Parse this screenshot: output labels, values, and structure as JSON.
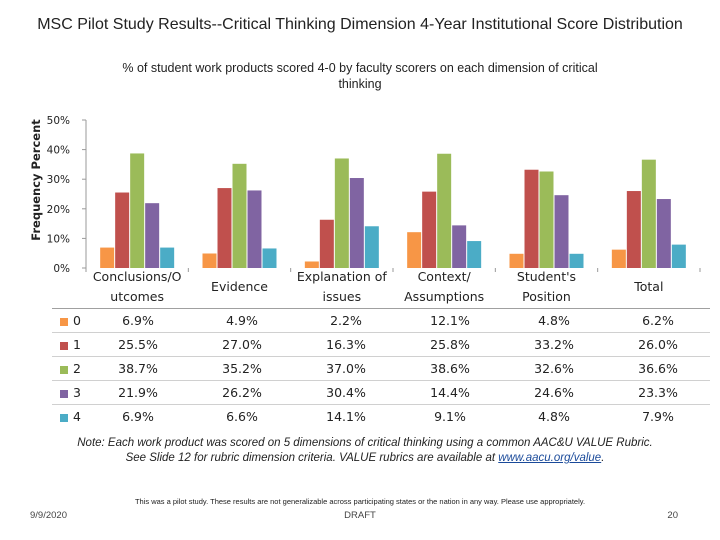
{
  "chart_data": {
    "type": "bar",
    "title": "MSC Pilot Study Results--Critical Thinking Dimension 4-Year Institutional Score Distribution",
    "subtitle": "% of student work products scored 4-0 by faculty scorers on each dimension of critical thinking",
    "ylabel": "Frequency Percent",
    "xlabel": "",
    "ylim": [
      0,
      50
    ],
    "yticks": [
      "0%",
      "10%",
      "20%",
      "30%",
      "40%",
      "50%"
    ],
    "grid": false,
    "categories": [
      {
        "line1": "Conclusions/O",
        "line2": "utcomes"
      },
      {
        "line1": "Evidence",
        "line2": ""
      },
      {
        "line1": "Explanation of",
        "line2": "issues"
      },
      {
        "line1": "Context/",
        "line2": "Assumptions"
      },
      {
        "line1": "Student's",
        "line2": "Position"
      },
      {
        "line1": "Total",
        "line2": ""
      }
    ],
    "series": [
      {
        "name": "0",
        "color": "#f79646",
        "values": [
          6.9,
          4.9,
          2.2,
          12.1,
          4.8,
          6.2
        ],
        "labels": [
          "6.9%",
          "4.9%",
          "2.2%",
          "12.1%",
          "4.8%",
          "6.2%"
        ]
      },
      {
        "name": "1",
        "color": "#c0504d",
        "values": [
          25.5,
          27.0,
          16.3,
          25.8,
          33.2,
          26.0
        ],
        "labels": [
          "25.5%",
          "27.0%",
          "16.3%",
          "25.8%",
          "33.2%",
          "26.0%"
        ]
      },
      {
        "name": "2",
        "color": "#9bbb59",
        "values": [
          38.7,
          35.2,
          37.0,
          38.6,
          32.6,
          36.6
        ],
        "labels": [
          "38.7%",
          "35.2%",
          "37.0%",
          "38.6%",
          "32.6%",
          "36.6%"
        ]
      },
      {
        "name": "3",
        "color": "#8064a2",
        "values": [
          21.9,
          26.2,
          30.4,
          14.4,
          24.6,
          23.3
        ],
        "labels": [
          "21.9%",
          "26.2%",
          "30.4%",
          "14.4%",
          "24.6%",
          "23.3%"
        ]
      },
      {
        "name": "4",
        "color": "#4bacc6",
        "values": [
          6.9,
          6.6,
          14.1,
          9.1,
          4.8,
          7.9
        ],
        "labels": [
          "6.9%",
          "6.6%",
          "14.1%",
          "9.1%",
          "4.8%",
          "7.9%"
        ]
      }
    ]
  },
  "note": {
    "line1": "Note: Each work product was scored on 5 dimensions of critical thinking using a common AAC&U VALUE Rubric.",
    "line2": "See Slide 12 for rubric dimension criteria. VALUE rubrics are available at",
    "link": "www.aacu.org/value",
    "end": "."
  },
  "disclaimer": "This was a pilot study. These results are not generalizable across participating states or the nation in any way. Please use appropriately.",
  "footer": {
    "date": "9/9/2020",
    "label": "DRAFT",
    "page": "20"
  }
}
